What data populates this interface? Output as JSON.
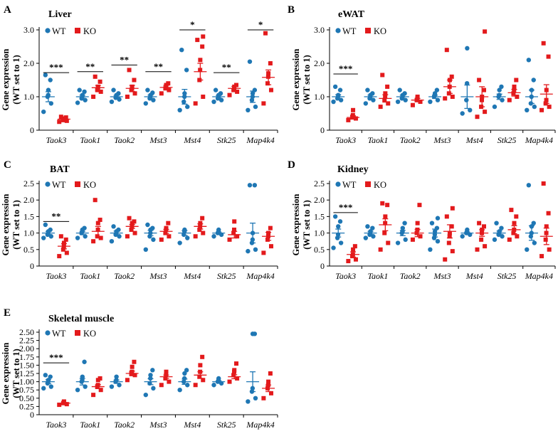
{
  "figure": {
    "colors": {
      "WT": "#1f77b4",
      "KO": "#e31a1c"
    },
    "legend": {
      "wt": "WT",
      "ko": "KO"
    }
  },
  "chart_data": [
    {
      "type": "scatter",
      "panel": "A",
      "title": "Liver",
      "ylabel_line1": "Gene expression",
      "ylabel_line2": "(WT set to 1)",
      "ylim": [
        0,
        3
      ],
      "yticks": [
        "0",
        "1.0",
        "2.0",
        "3.0"
      ],
      "ytick_values": [
        0,
        1,
        2,
        3
      ],
      "categories": [
        "Taok3",
        "Taok1",
        "Taok2",
        "Mst3",
        "Mst4",
        "Stk25",
        "Map4k4"
      ],
      "series": [
        {
          "name": "WT",
          "points": [
            [
              0.55,
              0.8,
              1.0,
              1.05,
              1.2,
              1.5,
              1.65
            ],
            [
              0.82,
              0.9,
              0.95,
              1.0,
              1.05,
              1.15,
              1.2
            ],
            [
              0.85,
              0.92,
              0.97,
              1.0,
              1.05,
              1.1,
              1.2
            ],
            [
              0.8,
              0.9,
              0.95,
              1.0,
              1.05,
              1.12,
              1.2
            ],
            [
              0.6,
              0.7,
              0.85,
              1.0,
              1.1,
              1.8,
              2.4
            ],
            [
              0.85,
              0.9,
              0.95,
              1.0,
              1.05,
              1.1,
              1.2
            ],
            [
              0.6,
              0.7,
              0.9,
              1.0,
              1.1,
              1.2,
              2.05
            ]
          ],
          "mean": [
            1.0,
            1.0,
            1.0,
            1.0,
            1.0,
            1.0,
            1.0
          ],
          "sem": [
            0.15,
            0.05,
            0.04,
            0.05,
            0.22,
            0.04,
            0.17
          ]
        },
        {
          "name": "KO",
          "points": [
            [
              0.25,
              0.28,
              0.3,
              0.32,
              0.35,
              0.38,
              0.4
            ],
            [
              1.0,
              1.15,
              1.2,
              1.25,
              1.3,
              1.45,
              1.6
            ],
            [
              1.0,
              1.1,
              1.2,
              1.25,
              1.3,
              1.5,
              1.8
            ],
            [
              1.1,
              1.2,
              1.25,
              1.3,
              1.35,
              1.4
            ],
            [
              0.8,
              1.0,
              1.5,
              1.8,
              2.1,
              2.5,
              2.7,
              2.8
            ],
            [
              1.05,
              1.15,
              1.2,
              1.25,
              1.3,
              1.35
            ],
            [
              0.8,
              1.2,
              1.4,
              1.6,
              1.7,
              2.0,
              2.9
            ]
          ],
          "mean": [
            0.33,
            1.27,
            1.25,
            1.28,
            1.75,
            1.25,
            1.58
          ],
          "sem": [
            0.03,
            0.07,
            0.09,
            0.06,
            0.25,
            0.06,
            0.22
          ]
        }
      ],
      "significance": [
        {
          "category": "Taok3",
          "label": "***",
          "y": 1.72
        },
        {
          "category": "Taok1",
          "label": "**",
          "y": 1.75
        },
        {
          "category": "Taok2",
          "label": "**",
          "y": 1.95
        },
        {
          "category": "Mst3",
          "label": "**",
          "y": 1.75
        },
        {
          "category": "Mst4",
          "label": "*",
          "y": 3.0
        },
        {
          "category": "Stk25",
          "label": "**",
          "y": 1.72
        },
        {
          "category": "Map4k4",
          "label": "*",
          "y": 3.0
        }
      ]
    },
    {
      "type": "scatter",
      "panel": "B",
      "title": "eWAT",
      "ylabel_line1": "Gene expression",
      "ylabel_line2": "(WT set to 1)",
      "ylim": [
        0,
        3
      ],
      "yticks": [
        "0",
        "1.0",
        "2.0",
        "3.0"
      ],
      "ytick_values": [
        0,
        1,
        2,
        3
      ],
      "categories": [
        "Taok3",
        "Taok1",
        "Taok2",
        "Mst3",
        "Mst4",
        "Stk25",
        "Map4k4"
      ],
      "series": [
        {
          "name": "WT",
          "points": [
            [
              0.85,
              0.9,
              0.95,
              1.0,
              1.05,
              1.2,
              1.3
            ],
            [
              0.8,
              0.9,
              0.95,
              1.0,
              1.05,
              1.1,
              1.2
            ],
            [
              0.85,
              0.9,
              0.95,
              1.0,
              1.05,
              1.1,
              1.2
            ],
            [
              0.85,
              0.9,
              1.0,
              1.05,
              1.1,
              1.2
            ],
            [
              0.5,
              0.6,
              0.9,
              1.4,
              2.45
            ],
            [
              0.7,
              0.9,
              1.0,
              1.05,
              1.2,
              1.3
            ],
            [
              0.6,
              0.7,
              0.8,
              1.0,
              1.2,
              1.5,
              2.1
            ]
          ],
          "mean": [
            1.0,
            1.0,
            1.0,
            1.0,
            1.0,
            1.0,
            1.0
          ],
          "sem": [
            0.06,
            0.05,
            0.05,
            0.05,
            0.35,
            0.08,
            0.2
          ]
        },
        {
          "name": "KO",
          "points": [
            [
              0.3,
              0.35,
              0.4,
              0.45,
              0.6
            ],
            [
              0.7,
              0.8,
              0.9,
              1.0,
              1.1,
              1.3,
              1.65
            ],
            [
              0.75,
              0.85,
              0.9,
              0.95,
              1.0
            ],
            [
              0.95,
              1.0,
              1.1,
              1.3,
              1.5,
              1.6,
              2.4
            ],
            [
              0.4,
              0.55,
              0.7,
              0.9,
              1.0,
              1.2,
              1.5,
              2.95
            ],
            [
              0.9,
              1.0,
              1.1,
              1.2,
              1.3,
              1.5
            ],
            [
              0.6,
              0.7,
              0.8,
              0.9,
              1.2,
              2.2,
              2.6
            ]
          ],
          "mean": [
            0.38,
            0.95,
            0.9,
            1.3,
            1.0,
            1.12,
            1.08
          ],
          "sem": [
            0.05,
            0.11,
            0.05,
            0.2,
            0.3,
            0.1,
            0.28
          ]
        }
      ],
      "significance": [
        {
          "category": "Taok3",
          "label": "***",
          "y": 1.68
        }
      ]
    },
    {
      "type": "scatter",
      "panel": "C",
      "title": "BAT",
      "ylabel_line1": "Gene expression",
      "ylabel_line2": "(WT set to 1)",
      "ylim": [
        0,
        2.5
      ],
      "yticks": [
        "0",
        "0.5",
        "1.0",
        "1.5",
        "2.0",
        "2.5"
      ],
      "ytick_values": [
        0,
        0.5,
        1.0,
        1.5,
        2.0,
        2.5
      ],
      "categories": [
        "Taok3",
        "Taok1",
        "Taok2",
        "Mst3",
        "Mst4",
        "Stk25",
        "Map4k4"
      ],
      "series": [
        {
          "name": "WT",
          "points": [
            [
              0.85,
              0.9,
              0.95,
              1.0,
              1.05,
              1.1,
              1.25
            ],
            [
              0.85,
              0.9,
              1.0,
              1.05,
              1.1,
              1.15
            ],
            [
              0.75,
              0.9,
              0.95,
              1.0,
              1.05,
              1.1,
              1.2
            ],
            [
              0.5,
              0.8,
              0.9,
              1.0,
              1.1,
              1.15,
              1.25
            ],
            [
              0.7,
              0.85,
              0.95,
              1.05,
              1.1
            ],
            [
              0.9,
              0.95,
              1.0,
              1.05,
              1.1
            ],
            [
              0.45,
              0.5,
              0.7,
              0.8,
              1.0,
              2.45,
              2.45
            ]
          ],
          "mean": [
            1.0,
            1.0,
            1.0,
            1.0,
            1.0,
            1.0,
            1.0
          ],
          "sem": [
            0.05,
            0.05,
            0.06,
            0.08,
            0.07,
            0.03,
            0.3
          ]
        },
        {
          "name": "KO",
          "points": [
            [
              0.3,
              0.4,
              0.5,
              0.6,
              0.7,
              0.8,
              0.9
            ],
            [
              0.75,
              0.85,
              0.9,
              1.1,
              1.3,
              1.4,
              2.0
            ],
            [
              0.9,
              1.0,
              1.1,
              1.2,
              1.3,
              1.35,
              1.45
            ],
            [
              0.8,
              0.9,
              1.0,
              1.1,
              1.15,
              1.3
            ],
            [
              0.9,
              1.0,
              1.1,
              1.2,
              1.3,
              1.45
            ],
            [
              0.8,
              0.9,
              1.0,
              1.1,
              1.35
            ],
            [
              0.4,
              0.6,
              0.8,
              0.9,
              1.0,
              1.15
            ]
          ],
          "mean": [
            0.6,
            1.05,
            1.2,
            1.05,
            1.2,
            0.95,
            0.9
          ],
          "sem": [
            0.08,
            0.15,
            0.06,
            0.06,
            0.08,
            0.1,
            0.12
          ]
        }
      ],
      "significance": [
        {
          "category": "Taok3",
          "label": "**",
          "y": 1.35
        }
      ]
    },
    {
      "type": "scatter",
      "panel": "D",
      "title": "Kidney",
      "ylabel_line1": "Gene expression",
      "ylabel_line2": "(WT set to 1)",
      "ylim": [
        0,
        2.5
      ],
      "yticks": [
        "0",
        "0.5",
        "1.0",
        "1.5",
        "2.0",
        "2.5"
      ],
      "ytick_values": [
        0,
        0.5,
        1.0,
        1.5,
        2.0,
        2.5
      ],
      "categories": [
        "Taok3",
        "Taok1",
        "Taok2",
        "Mst3",
        "Mst4",
        "Stk25",
        "Map4k4"
      ],
      "series": [
        {
          "name": "WT",
          "points": [
            [
              0.55,
              0.7,
              0.85,
              0.95,
              1.2,
              1.35,
              1.5
            ],
            [
              0.85,
              0.9,
              0.95,
              1.0,
              1.05,
              1.15,
              1.2
            ],
            [
              0.7,
              0.8,
              1.0,
              1.05,
              1.15,
              1.3
            ],
            [
              0.5,
              0.75,
              0.85,
              0.95,
              1.05,
              1.15,
              1.3,
              1.45
            ],
            [
              0.9,
              0.95,
              1.0,
              1.05,
              1.1
            ],
            [
              0.8,
              0.9,
              0.95,
              1.0,
              1.05,
              1.15,
              1.3
            ],
            [
              0.5,
              0.7,
              0.9,
              1.0,
              1.2,
              1.3,
              2.45
            ]
          ],
          "mean": [
            1.0,
            1.0,
            1.0,
            1.0,
            1.0,
            1.0,
            1.0
          ],
          "sem": [
            0.12,
            0.05,
            0.08,
            0.12,
            0.03,
            0.06,
            0.22
          ]
        },
        {
          "name": "KO",
          "points": [
            [
              0.15,
              0.2,
              0.3,
              0.35,
              0.5,
              0.6
            ],
            [
              0.5,
              0.7,
              1.0,
              1.3,
              1.5,
              1.85,
              1.9
            ],
            [
              0.8,
              0.9,
              1.0,
              1.1,
              1.3,
              1.85
            ],
            [
              0.2,
              0.45,
              0.7,
              0.9,
              1.0,
              1.2,
              1.5,
              1.75
            ],
            [
              0.5,
              0.6,
              0.8,
              1.0,
              1.1,
              1.2,
              1.3
            ],
            [
              0.8,
              0.9,
              1.0,
              1.1,
              1.3,
              1.5,
              1.7
            ],
            [
              0.3,
              0.5,
              0.8,
              1.0,
              1.2,
              1.6,
              2.5
            ]
          ],
          "mean": [
            0.35,
            1.25,
            1.0,
            1.05,
            1.0,
            1.1,
            0.9
          ],
          "sem": [
            0.08,
            0.18,
            0.11,
            0.2,
            0.1,
            0.12,
            0.25
          ]
        }
      ],
      "significance": [
        {
          "category": "Taok3",
          "label": "***",
          "y": 1.62
        }
      ]
    },
    {
      "type": "scatter",
      "panel": "E",
      "title": "Skeletal muscle",
      "ylabel_line1": "Gene expression",
      "ylabel_line2": "(WT set to 1)",
      "ylim": [
        0,
        2.5
      ],
      "yticks": [
        "0",
        "0.25",
        "0.50",
        "0.75",
        "1.00",
        "1.25",
        "1.50",
        "1.75",
        "2.00",
        "2.25",
        "2.50"
      ],
      "ytick_values": [
        0,
        0.25,
        0.5,
        0.75,
        1.0,
        1.25,
        1.5,
        1.75,
        2.0,
        2.25,
        2.5
      ],
      "categories": [
        "Taok3",
        "Taok1",
        "Taok2",
        "Mst3",
        "Mst4",
        "Stk25",
        "Map4k4"
      ],
      "series": [
        {
          "name": "WT",
          "points": [
            [
              0.8,
              0.85,
              0.95,
              1.0,
              1.05,
              1.15,
              1.2
            ],
            [
              0.75,
              0.85,
              1.0,
              1.05,
              1.15,
              1.6
            ],
            [
              0.85,
              0.9,
              1.0,
              1.05,
              1.15
            ],
            [
              0.6,
              0.8,
              0.95,
              1.1,
              1.2,
              1.35
            ],
            [
              0.75,
              0.9,
              1.0,
              1.1,
              1.25,
              1.35
            ],
            [
              0.9,
              0.95,
              1.0,
              1.05,
              1.1
            ],
            [
              0.4,
              0.5,
              0.7,
              0.8,
              2.45,
              2.45
            ]
          ],
          "mean": [
            1.0,
            1.0,
            1.0,
            1.0,
            1.0,
            1.0,
            1.0
          ],
          "sem": [
            0.06,
            0.1,
            0.05,
            0.09,
            0.08,
            0.03,
            0.3
          ]
        },
        {
          "name": "KO",
          "points": [
            [
              0.3,
              0.32,
              0.35,
              0.38,
              0.4
            ],
            [
              0.6,
              0.75,
              0.85,
              0.9,
              1.05,
              1.1
            ],
            [
              1.05,
              1.2,
              1.25,
              1.3,
              1.45,
              1.6
            ],
            [
              0.9,
              1.0,
              1.1,
              1.2,
              1.3
            ],
            [
              0.9,
              1.05,
              1.15,
              1.3,
              1.5,
              1.75
            ],
            [
              1.0,
              1.1,
              1.2,
              1.3,
              1.35,
              1.55
            ],
            [
              0.5,
              0.65,
              0.8,
              0.9,
              1.0,
              1.25
            ]
          ],
          "mean": [
            0.35,
            0.85,
            1.25,
            1.15,
            1.2,
            1.15,
            0.8
          ],
          "sem": [
            0.02,
            0.06,
            0.07,
            0.05,
            0.1,
            0.06,
            0.1
          ]
        }
      ],
      "significance": [
        {
          "category": "Taok3",
          "label": "***",
          "y": 1.57
        }
      ]
    }
  ]
}
